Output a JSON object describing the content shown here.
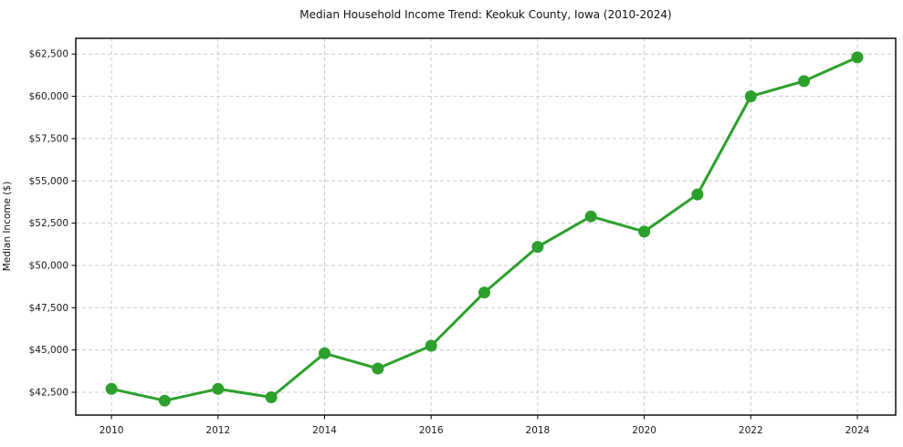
{
  "chart_data": {
    "type": "line",
    "title": "Median Household Income Trend: Keokuk County, Iowa (2010-2024)",
    "xlabel": "",
    "ylabel": "Median Income ($)",
    "series_name": "Median household income",
    "x": [
      2010,
      2011,
      2012,
      2013,
      2014,
      2015,
      2016,
      2017,
      2018,
      2019,
      2020,
      2021,
      2022,
      2023,
      2024
    ],
    "values": [
      42700,
      42000,
      42700,
      42200,
      44800,
      43900,
      45250,
      48400,
      51100,
      52900,
      52000,
      54200,
      60000,
      60900,
      62300
    ],
    "ylim": [
      41150,
      63430
    ],
    "xlim": [
      2009.33,
      2024.72
    ],
    "yticks": [
      42500,
      45000,
      47500,
      50000,
      52500,
      55000,
      57500,
      60000,
      62500
    ],
    "ytick_labels": [
      "$42,500",
      "$45,000",
      "$47,500",
      "$50,000",
      "$52,500",
      "$55,000",
      "$57,500",
      "$60,000",
      "$62,500"
    ],
    "xticks": [
      2010,
      2012,
      2014,
      2016,
      2018,
      2020,
      2022,
      2024
    ],
    "xtick_labels": [
      "2010",
      "2012",
      "2014",
      "2016",
      "2018",
      "2020",
      "2022",
      "2024"
    ],
    "grid": true,
    "grid_style": "dashed",
    "legend": false,
    "legend_position": "none",
    "line_color": "#2ca02c",
    "marker": "circle",
    "marker_color": "#2ca02c",
    "grid_color": "#cccccc",
    "spine_color": "#000000",
    "tick_label_color": "#1a1a1a",
    "background": "#ffffff"
  }
}
